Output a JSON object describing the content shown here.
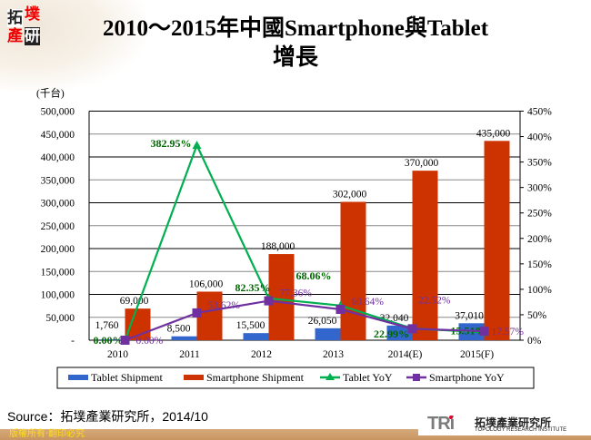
{
  "header": {
    "logo_text": "拓墣產研",
    "title_line1": "2010～2015年中國Smartphone與Tablet",
    "title_line2": "增長"
  },
  "chart_data": {
    "type": "bar",
    "title": "2010～2015年中國Smartphone與Tablet增長",
    "ylabel": "(千台)",
    "categories": [
      "2010",
      "2011",
      "2012",
      "2013",
      "2014(E)",
      "2015(F)"
    ],
    "ylim": [
      0,
      500000
    ],
    "y_ticks": [
      "-",
      "50,000",
      "100,000",
      "150,000",
      "200,000",
      "250,000",
      "300,000",
      "350,000",
      "400,000",
      "450,000",
      "500,000"
    ],
    "y2lim": [
      0,
      450
    ],
    "y2_ticks": [
      "0%",
      "50%",
      "100%",
      "150%",
      "200%",
      "250%",
      "300%",
      "350%",
      "400%",
      "450%"
    ],
    "grid": true,
    "legend_position": "bottom",
    "series": [
      {
        "name": "Tablet Shipment",
        "kind": "bar",
        "axis": "left",
        "color": "#3366cc",
        "values": [
          1760,
          8500,
          15500,
          26050,
          32040,
          37010
        ],
        "labels": [
          "1,760",
          "8,500",
          "15,500",
          "26,050",
          "32,040",
          "37,010"
        ]
      },
      {
        "name": "Smartphone Shipment",
        "kind": "bar",
        "axis": "left",
        "color": "#cc3300",
        "values": [
          69000,
          106000,
          188000,
          302000,
          370000,
          435000
        ],
        "labels": [
          "69,000",
          "106,000",
          "188,000",
          "302,000",
          "370,000",
          "435,000"
        ]
      },
      {
        "name": "Tablet YoY",
        "kind": "line",
        "axis": "right",
        "color": "#00b050",
        "label_color": "#006600",
        "marker": "triangle",
        "values": [
          0,
          382.95,
          82.35,
          68.06,
          22.99,
          15.51
        ],
        "labels": [
          "0.00%",
          "382.95%",
          "82.35%",
          "68.06%",
          "22.99%",
          "15.51%"
        ]
      },
      {
        "name": "Smartphone YoY",
        "kind": "line",
        "axis": "right",
        "color": "#7030a0",
        "label_color": "#7030a0",
        "marker": "square",
        "values": [
          0,
          53.62,
          77.36,
          60.64,
          22.52,
          17.57
        ],
        "labels": [
          "0.00%",
          "53.62%",
          "77.36%",
          "60.64%",
          "22.52%",
          "17.57%"
        ]
      }
    ]
  },
  "source": "Source：拓墣產業研究所，2014/10",
  "footer": {
    "copyright": "版權所有‧翻印必究",
    "brand_mark": "TRi",
    "brand_cn": "拓墣產業研究所",
    "brand_en": "TOPOLOGY RESEARCH INSTITUTE"
  }
}
